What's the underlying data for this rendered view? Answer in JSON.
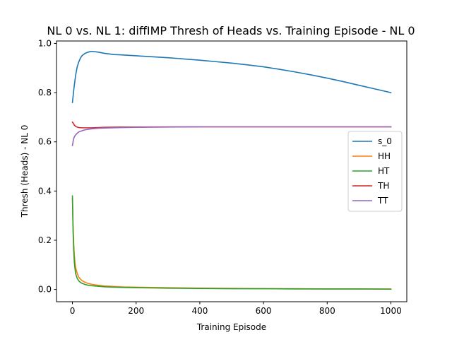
{
  "chart_data": {
    "type": "line",
    "title": "NL 0 vs. NL 1: diffIMP Thresh of Heads vs. Training Episode - NL 0",
    "xlabel": "Training Episode",
    "ylabel": "Thresh (Heads) - NL 0",
    "xlim": [
      -50,
      1050
    ],
    "ylim": [
      -0.05,
      1.01
    ],
    "xticks": [
      0,
      200,
      400,
      600,
      800,
      1000
    ],
    "xtick_labels": [
      "0",
      "200",
      "400",
      "600",
      "800",
      "1000"
    ],
    "yticks": [
      0.0,
      0.2,
      0.4,
      0.6,
      0.8,
      1.0
    ],
    "ytick_labels": [
      "0.0",
      "0.2",
      "0.4",
      "0.6",
      "0.8",
      "1.0"
    ],
    "grid": false,
    "legend_position": "center-right",
    "series": [
      {
        "name": "s_0",
        "color": "#1f77b4",
        "x": [
          0,
          5,
          10,
          15,
          20,
          25,
          30,
          40,
          50,
          60,
          80,
          100,
          130,
          160,
          200,
          250,
          300,
          350,
          400,
          450,
          500,
          550,
          600,
          650,
          700,
          750,
          800,
          850,
          900,
          950,
          1000
        ],
        "y": [
          0.76,
          0.82,
          0.87,
          0.905,
          0.925,
          0.94,
          0.95,
          0.96,
          0.965,
          0.968,
          0.965,
          0.96,
          0.955,
          0.953,
          0.95,
          0.946,
          0.942,
          0.937,
          0.932,
          0.926,
          0.92,
          0.913,
          0.905,
          0.895,
          0.884,
          0.872,
          0.859,
          0.845,
          0.83,
          0.815,
          0.8
        ]
      },
      {
        "name": "HH",
        "color": "#ff7f0e",
        "x": [
          0,
          2,
          4,
          6,
          8,
          10,
          15,
          20,
          25,
          30,
          40,
          50,
          60,
          80,
          100,
          130,
          160,
          200,
          250,
          300,
          400,
          500,
          600,
          700,
          800,
          900,
          1000
        ],
        "y": [
          0.37,
          0.26,
          0.19,
          0.14,
          0.11,
          0.09,
          0.065,
          0.05,
          0.042,
          0.036,
          0.029,
          0.024,
          0.021,
          0.017,
          0.014,
          0.012,
          0.01,
          0.009,
          0.008,
          0.007,
          0.005,
          0.004,
          0.003,
          0.003,
          0.002,
          0.002,
          0.002
        ]
      },
      {
        "name": "HT",
        "color": "#2ca02c",
        "x": [
          0,
          2,
          4,
          6,
          8,
          10,
          15,
          20,
          25,
          30,
          40,
          50,
          60,
          80,
          100,
          130,
          160,
          200,
          250,
          300,
          400,
          500,
          600,
          700,
          800,
          900,
          1000
        ],
        "y": [
          0.38,
          0.24,
          0.16,
          0.11,
          0.085,
          0.065,
          0.045,
          0.035,
          0.029,
          0.025,
          0.02,
          0.017,
          0.015,
          0.013,
          0.011,
          0.009,
          0.008,
          0.007,
          0.006,
          0.005,
          0.004,
          0.003,
          0.003,
          0.002,
          0.002,
          0.002,
          0.001
        ]
      },
      {
        "name": "TH",
        "color": "#d62728",
        "x": [
          0,
          3,
          6,
          10,
          15,
          20,
          30,
          40,
          60,
          80,
          100,
          150,
          200,
          300,
          400,
          500,
          600,
          700,
          800,
          900,
          1000
        ],
        "y": [
          0.68,
          0.675,
          0.668,
          0.663,
          0.66,
          0.658,
          0.657,
          0.657,
          0.657,
          0.658,
          0.659,
          0.66,
          0.66,
          0.661,
          0.661,
          0.661,
          0.661,
          0.661,
          0.661,
          0.661,
          0.661
        ]
      },
      {
        "name": "TT",
        "color": "#9467bd",
        "x": [
          0,
          2,
          4,
          6,
          10,
          15,
          20,
          30,
          40,
          50,
          60,
          80,
          100,
          150,
          200,
          300,
          400,
          500,
          600,
          700,
          800,
          900,
          1000
        ],
        "y": [
          0.585,
          0.6,
          0.613,
          0.62,
          0.628,
          0.635,
          0.64,
          0.645,
          0.649,
          0.651,
          0.653,
          0.655,
          0.656,
          0.658,
          0.659,
          0.66,
          0.661,
          0.661,
          0.661,
          0.661,
          0.661,
          0.661,
          0.661
        ]
      }
    ]
  }
}
